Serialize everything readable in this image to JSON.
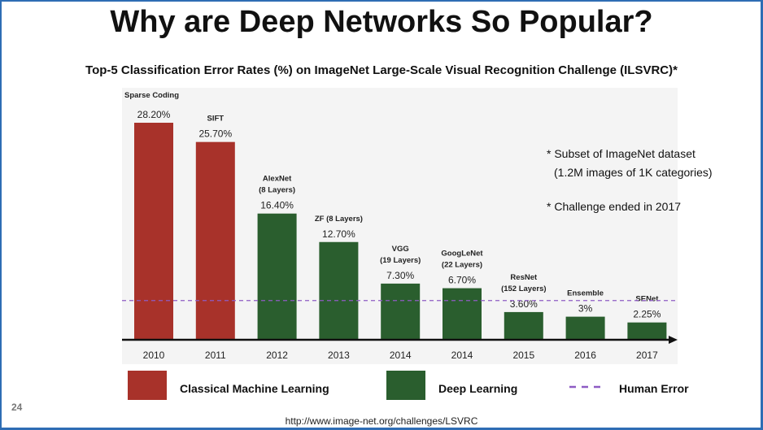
{
  "slide": {
    "title": "Why are Deep Networks So Popular?",
    "page_number": "24",
    "source_url": "http://www.image-net.org/challenges/LSVRC"
  },
  "colors": {
    "classical": "#a8322a",
    "deep": "#2a5e2e",
    "human": "#8e5cc4",
    "frame": "#2e6db4"
  },
  "chart_data": {
    "type": "bar",
    "title": "Top-5 Classification Error Rates (%) on ImageNet Large-Scale Visual Recognition Challenge (ILSVRC)*",
    "categories": [
      "2010",
      "2011",
      "2012",
      "2013",
      "2014",
      "2014",
      "2015",
      "2016",
      "2017"
    ],
    "values": [
      28.2,
      25.7,
      16.4,
      12.7,
      7.3,
      6.7,
      3.6,
      3.0,
      2.25
    ],
    "value_labels": [
      "28.20%",
      "25.70%",
      "16.40%",
      "12.70%",
      "7.30%",
      "6.70%",
      "3.60%",
      "3%",
      "2.25%"
    ],
    "model_names": [
      [
        "Sparse Coding"
      ],
      [
        "SIFT"
      ],
      [
        "AlexNet",
        "(8 Layers)"
      ],
      [
        "ZF (8 Layers)"
      ],
      [
        "VGG",
        "(19 Layers)"
      ],
      [
        "GoogLeNet",
        "(22 Layers)"
      ],
      [
        "ResNet",
        "(152 Layers)"
      ],
      [
        "Ensemble"
      ],
      [
        "SENet"
      ]
    ],
    "groups": [
      "classical",
      "classical",
      "deep",
      "deep",
      "deep",
      "deep",
      "deep",
      "deep",
      "deep"
    ],
    "human_error": 5.1,
    "ylim": [
      0,
      30
    ],
    "notes": [
      "* Subset of ImageNet dataset",
      "(1.2M images of 1K categories)",
      "* Challenge ended in 2017"
    ],
    "legend": [
      {
        "key": "classical",
        "label": "Classical Machine Learning"
      },
      {
        "key": "deep",
        "label": "Deep Learning"
      },
      {
        "key": "human",
        "label": "Human Error"
      }
    ]
  }
}
